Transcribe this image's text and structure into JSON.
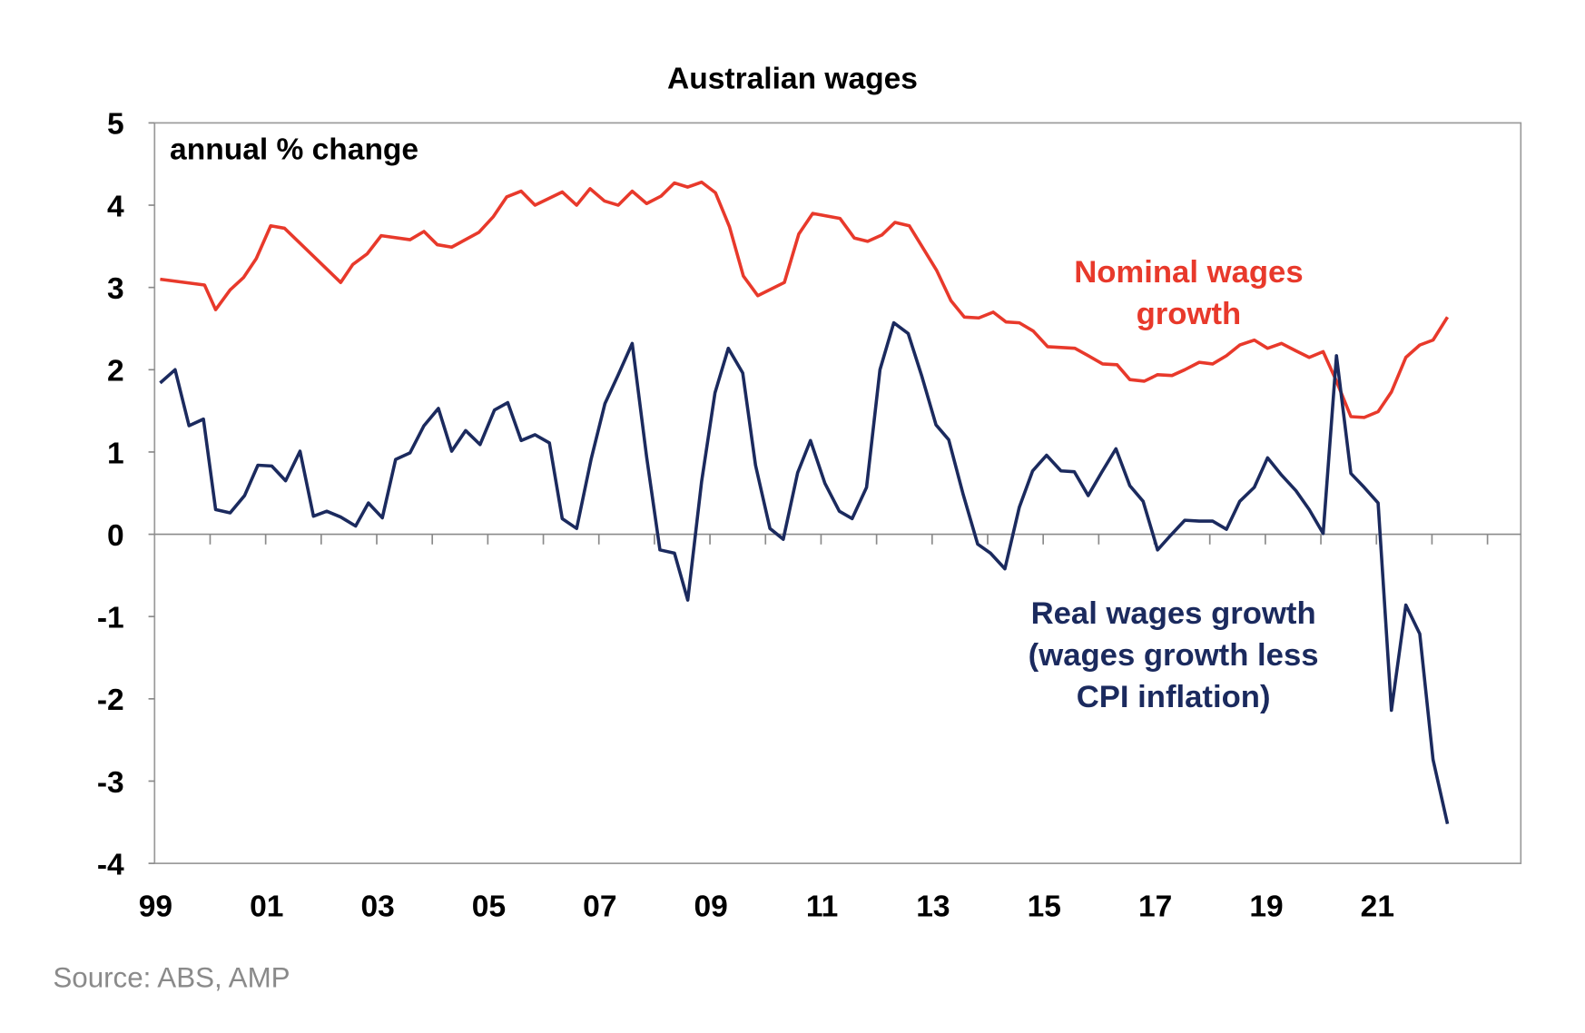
{
  "chart_data": {
    "type": "line",
    "title": "Australian wages",
    "ylabel": "annual % change",
    "xlabel": "",
    "ylim": [
      -4,
      5
    ],
    "xlim": [
      1999,
      2023.6
    ],
    "yticks": [
      5,
      4,
      3,
      2,
      1,
      0,
      -1,
      -2,
      -3,
      -4
    ],
    "xtick_labels": [
      {
        "year": 1999,
        "label": "99"
      },
      {
        "year": 2001,
        "label": "01"
      },
      {
        "year": 2003,
        "label": "03"
      },
      {
        "year": 2005,
        "label": "05"
      },
      {
        "year": 2007,
        "label": "07"
      },
      {
        "year": 2009,
        "label": "09"
      },
      {
        "year": 2011,
        "label": "11"
      },
      {
        "year": 2013,
        "label": "13"
      },
      {
        "year": 2015,
        "label": "15"
      },
      {
        "year": 2017,
        "label": "17"
      },
      {
        "year": 2019,
        "label": "19"
      },
      {
        "year": 2021,
        "label": "21"
      }
    ],
    "grid": false,
    "series": [
      {
        "name": "Nominal wages growth",
        "label_lines": [
          "Nominal wages",
          "growth"
        ],
        "color": "#e8392b",
        "points": [
          [
            1999.1,
            3.1
          ],
          [
            1999.9,
            3.03
          ],
          [
            2000.1,
            2.73
          ],
          [
            2000.36,
            2.97
          ],
          [
            2000.6,
            3.12
          ],
          [
            2000.83,
            3.35
          ],
          [
            2001.09,
            3.75
          ],
          [
            2001.34,
            3.72
          ],
          [
            2002.35,
            3.06
          ],
          [
            2002.57,
            3.28
          ],
          [
            2002.83,
            3.41
          ],
          [
            2003.08,
            3.63
          ],
          [
            2003.6,
            3.58
          ],
          [
            2003.85,
            3.68
          ],
          [
            2004.09,
            3.52
          ],
          [
            2004.35,
            3.49
          ],
          [
            2004.84,
            3.67
          ],
          [
            2005.1,
            3.86
          ],
          [
            2005.34,
            4.1
          ],
          [
            2005.6,
            4.17
          ],
          [
            2005.85,
            4.0
          ],
          [
            2006.34,
            4.16
          ],
          [
            2006.6,
            4.0
          ],
          [
            2006.84,
            4.2
          ],
          [
            2007.1,
            4.05
          ],
          [
            2007.35,
            4.0
          ],
          [
            2007.6,
            4.17
          ],
          [
            2007.86,
            4.02
          ],
          [
            2008.12,
            4.11
          ],
          [
            2008.36,
            4.27
          ],
          [
            2008.6,
            4.22
          ],
          [
            2008.85,
            4.28
          ],
          [
            2009.1,
            4.15
          ],
          [
            2009.35,
            3.74
          ],
          [
            2009.6,
            3.14
          ],
          [
            2009.86,
            2.9
          ],
          [
            2010.34,
            3.06
          ],
          [
            2010.6,
            3.65
          ],
          [
            2010.85,
            3.9
          ],
          [
            2011.34,
            3.84
          ],
          [
            2011.6,
            3.6
          ],
          [
            2011.84,
            3.56
          ],
          [
            2012.1,
            3.64
          ],
          [
            2012.33,
            3.79
          ],
          [
            2012.59,
            3.75
          ],
          [
            2013.08,
            3.21
          ],
          [
            2013.34,
            2.84
          ],
          [
            2013.58,
            2.64
          ],
          [
            2013.84,
            2.63
          ],
          [
            2014.1,
            2.7
          ],
          [
            2014.33,
            2.58
          ],
          [
            2014.57,
            2.57
          ],
          [
            2014.82,
            2.47
          ],
          [
            2015.08,
            2.28
          ],
          [
            2015.57,
            2.26
          ],
          [
            2015.81,
            2.17
          ],
          [
            2016.07,
            2.07
          ],
          [
            2016.33,
            2.06
          ],
          [
            2016.56,
            1.88
          ],
          [
            2016.82,
            1.86
          ],
          [
            2017.06,
            1.94
          ],
          [
            2017.32,
            1.93
          ],
          [
            2017.55,
            2.0
          ],
          [
            2017.81,
            2.09
          ],
          [
            2018.05,
            2.07
          ],
          [
            2018.3,
            2.17
          ],
          [
            2018.54,
            2.3
          ],
          [
            2018.8,
            2.36
          ],
          [
            2019.04,
            2.26
          ],
          [
            2019.29,
            2.32
          ],
          [
            2019.55,
            2.23
          ],
          [
            2019.79,
            2.15
          ],
          [
            2020.04,
            2.22
          ],
          [
            2020.28,
            1.86
          ],
          [
            2020.54,
            1.43
          ],
          [
            2020.78,
            1.42
          ],
          [
            2021.03,
            1.49
          ],
          [
            2021.27,
            1.73
          ],
          [
            2021.53,
            2.15
          ],
          [
            2021.78,
            2.3
          ],
          [
            2022.02,
            2.36
          ],
          [
            2022.28,
            2.64
          ]
        ]
      },
      {
        "name": "Real wages growth (wages growth less CPI inflation)",
        "label_lines": [
          "Real wages growth",
          "(wages growth less",
          "CPI inflation)"
        ],
        "color": "#1b2a5e",
        "points": [
          [
            1999.1,
            1.84
          ],
          [
            1999.37,
            2.0
          ],
          [
            1999.62,
            1.32
          ],
          [
            1999.88,
            1.4
          ],
          [
            2000.1,
            0.3
          ],
          [
            2000.36,
            0.26
          ],
          [
            2000.62,
            0.47
          ],
          [
            2000.86,
            0.84
          ],
          [
            2001.11,
            0.83
          ],
          [
            2001.36,
            0.65
          ],
          [
            2001.62,
            1.01
          ],
          [
            2001.86,
            0.22
          ],
          [
            2002.1,
            0.28
          ],
          [
            2002.35,
            0.21
          ],
          [
            2002.62,
            0.1
          ],
          [
            2002.85,
            0.38
          ],
          [
            2003.1,
            0.2
          ],
          [
            2003.34,
            0.91
          ],
          [
            2003.6,
            0.99
          ],
          [
            2003.85,
            1.32
          ],
          [
            2004.11,
            1.53
          ],
          [
            2004.35,
            1.01
          ],
          [
            2004.6,
            1.26
          ],
          [
            2004.86,
            1.09
          ],
          [
            2005.12,
            1.51
          ],
          [
            2005.36,
            1.6
          ],
          [
            2005.6,
            1.14
          ],
          [
            2005.85,
            1.21
          ],
          [
            2006.11,
            1.11
          ],
          [
            2006.34,
            0.19
          ],
          [
            2006.6,
            0.07
          ],
          [
            2006.86,
            0.91
          ],
          [
            2007.11,
            1.59
          ],
          [
            2007.35,
            1.94
          ],
          [
            2007.6,
            2.32
          ],
          [
            2007.86,
            0.94
          ],
          [
            2008.1,
            -0.19
          ],
          [
            2008.36,
            -0.23
          ],
          [
            2008.6,
            -0.8
          ],
          [
            2008.85,
            0.64
          ],
          [
            2009.09,
            1.72
          ],
          [
            2009.33,
            2.26
          ],
          [
            2009.59,
            1.96
          ],
          [
            2009.82,
            0.84
          ],
          [
            2010.08,
            0.07
          ],
          [
            2010.32,
            -0.06
          ],
          [
            2010.58,
            0.75
          ],
          [
            2010.81,
            1.14
          ],
          [
            2011.07,
            0.62
          ],
          [
            2011.33,
            0.28
          ],
          [
            2011.56,
            0.19
          ],
          [
            2011.82,
            0.57
          ],
          [
            2012.06,
            2.0
          ],
          [
            2012.31,
            2.57
          ],
          [
            2012.57,
            2.44
          ],
          [
            2012.81,
            1.93
          ],
          [
            2013.07,
            1.33
          ],
          [
            2013.3,
            1.15
          ],
          [
            2013.56,
            0.48
          ],
          [
            2013.82,
            -0.12
          ],
          [
            2014.05,
            -0.23
          ],
          [
            2014.31,
            -0.42
          ],
          [
            2014.57,
            0.33
          ],
          [
            2014.81,
            0.77
          ],
          [
            2015.06,
            0.96
          ],
          [
            2015.32,
            0.77
          ],
          [
            2015.56,
            0.76
          ],
          [
            2015.81,
            0.47
          ],
          [
            2016.05,
            0.75
          ],
          [
            2016.31,
            1.04
          ],
          [
            2016.56,
            0.59
          ],
          [
            2016.8,
            0.4
          ],
          [
            2017.06,
            -0.19
          ],
          [
            2017.3,
            -0.01
          ],
          [
            2017.55,
            0.17
          ],
          [
            2017.81,
            0.16
          ],
          [
            2018.05,
            0.16
          ],
          [
            2018.3,
            0.06
          ],
          [
            2018.54,
            0.4
          ],
          [
            2018.8,
            0.57
          ],
          [
            2019.04,
            0.93
          ],
          [
            2019.29,
            0.72
          ],
          [
            2019.55,
            0.53
          ],
          [
            2019.79,
            0.3
          ],
          [
            2020.04,
            0.01
          ],
          [
            2020.28,
            2.17
          ],
          [
            2020.54,
            0.74
          ],
          [
            2020.78,
            0.57
          ],
          [
            2021.03,
            0.38
          ],
          [
            2021.27,
            -2.14
          ],
          [
            2021.53,
            -0.86
          ],
          [
            2021.78,
            -1.21
          ],
          [
            2022.02,
            -2.74
          ],
          [
            2022.28,
            -3.52
          ]
        ]
      }
    ],
    "source": "Source: ABS, AMP"
  }
}
